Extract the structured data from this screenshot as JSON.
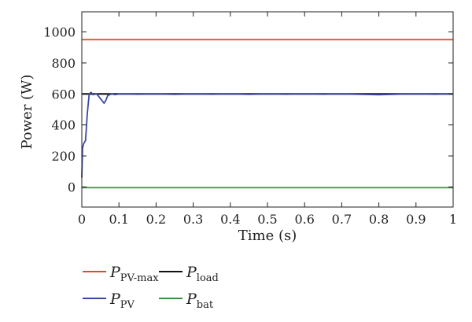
{
  "chart_data": {
    "type": "line",
    "title": "",
    "xlabel": "Time (s)",
    "ylabel": "Power (W)",
    "xlim": [
      0,
      1
    ],
    "ylim": [
      -130,
      1130
    ],
    "x_ticks": [
      0,
      0.1,
      0.2,
      0.3,
      0.4,
      0.5,
      0.6,
      0.7,
      0.8,
      0.9,
      1
    ],
    "x_tick_labels": [
      "0",
      "0.1",
      "0.2",
      "0.3",
      "0.4",
      "0.5",
      "0.6",
      "0.7",
      "0.8",
      "0.9",
      "1"
    ],
    "y_ticks": [
      0,
      200,
      400,
      600,
      800,
      1000
    ],
    "y_tick_labels": [
      "0",
      "200",
      "400",
      "600",
      "800",
      "1000"
    ],
    "grid": false,
    "legend_position": "bottom",
    "series": [
      {
        "name": "P_PV-max",
        "label_main": "P",
        "label_sub": "PV-max",
        "color": "#e8462a",
        "x": [
          0,
          1
        ],
        "y": [
          950,
          950
        ]
      },
      {
        "name": "P_load",
        "label_main": "P",
        "label_sub": "load",
        "color": "#111111",
        "x": [
          0,
          1
        ],
        "y": [
          600,
          600
        ]
      },
      {
        "name": "P_PV",
        "label_main": "P",
        "label_sub": "PV",
        "color": "#3a4aa0",
        "x": [
          0,
          0.002,
          0.005,
          0.01,
          0.015,
          0.02,
          0.025,
          0.03,
          0.04,
          0.05,
          0.06,
          0.065,
          0.07,
          0.08,
          0.09,
          0.1,
          0.15,
          0.2,
          0.25,
          0.3,
          0.35,
          0.4,
          0.45,
          0.5,
          0.55,
          0.6,
          0.65,
          0.7,
          0.75,
          0.8,
          0.85,
          0.9,
          0.95,
          1
        ],
        "y": [
          60,
          250,
          280,
          300,
          480,
          600,
          610,
          595,
          600,
          570,
          540,
          560,
          590,
          600,
          595,
          600,
          598,
          600,
          597,
          600,
          598,
          600,
          597,
          600,
          598,
          600,
          598,
          600,
          597,
          595,
          598,
          600,
          598,
          600
        ]
      },
      {
        "name": "P_bat",
        "label_main": "P",
        "label_sub": "bat",
        "color": "#3f8f3f",
        "x": [
          0,
          1
        ],
        "y": [
          -5,
          -5
        ]
      }
    ]
  }
}
